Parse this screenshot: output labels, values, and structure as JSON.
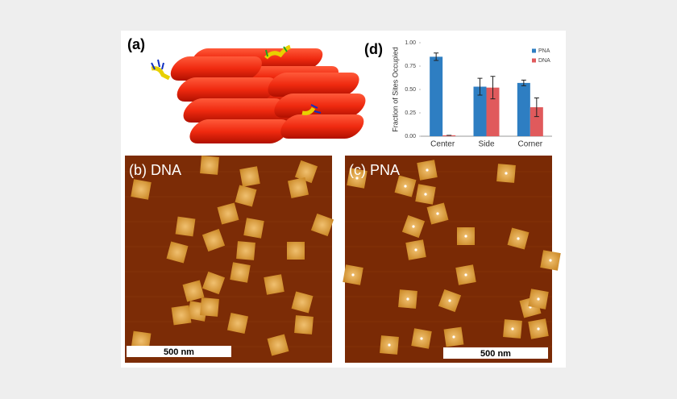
{
  "panels": {
    "a": {
      "label": "(a)"
    },
    "b": {
      "label": "(b) DNA",
      "scale_bar": "500 nm"
    },
    "c": {
      "label": "(c) PNA",
      "scale_bar": "500 nm"
    },
    "d": {
      "label": "(d)"
    }
  },
  "chart_data": {
    "type": "bar",
    "ylabel": "Fraction of Sites Occupied",
    "categories": [
      "Center",
      "Side",
      "Corner"
    ],
    "series": [
      {
        "name": "PNA",
        "color": "#2e7ec2",
        "values": [
          0.85,
          0.53,
          0.57
        ],
        "errors": [
          0.04,
          0.09,
          0.03
        ]
      },
      {
        "name": "DNA",
        "color": "#e05a5c",
        "values": [
          0.01,
          0.52,
          0.31
        ],
        "errors": [
          0.0,
          0.12,
          0.1
        ]
      }
    ],
    "ylim": [
      0,
      1
    ],
    "yticks": [
      {
        "value": 0,
        "label": "0.00"
      },
      {
        "value": 0.25,
        "label": "0.25"
      },
      {
        "value": 0.5,
        "label": "0.50"
      },
      {
        "value": 0.75,
        "label": "0.75"
      },
      {
        "value": 1,
        "label": "1.00"
      }
    ],
    "legend": "top-right"
  }
}
